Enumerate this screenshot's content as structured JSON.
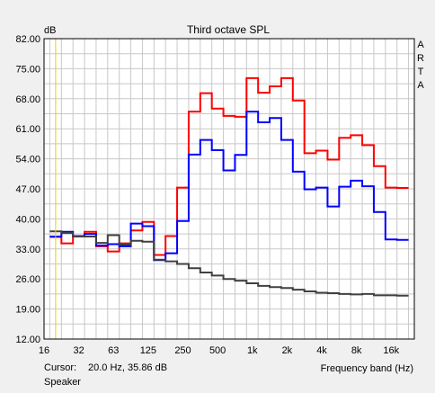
{
  "chart_data": {
    "type": "line",
    "title": "Third octave SPL",
    "ylabel": "dB",
    "xlabel": "Frequency band (Hz)",
    "side_label": [
      "A",
      "R",
      "T",
      "A"
    ],
    "ylim": [
      12.0,
      82.0
    ],
    "y_ticks": [
      "82.00",
      "75.00",
      "68.00",
      "61.00",
      "54.00",
      "47.00",
      "40.00",
      "33.00",
      "26.00",
      "19.00",
      "12.00"
    ],
    "x_tick_labels": [
      "16",
      "32",
      "63",
      "125",
      "250",
      "500",
      "1k",
      "2k",
      "4k",
      "8k",
      "16k"
    ],
    "x_bands": [
      20,
      25,
      31.5,
      40,
      50,
      63,
      80,
      100,
      125,
      160,
      200,
      250,
      315,
      400,
      500,
      630,
      800,
      1000,
      1250,
      1600,
      2000,
      2500,
      3150,
      4000,
      5000,
      6300,
      8000,
      10000,
      12500,
      16000,
      20000
    ],
    "grid": true,
    "cursor_x": 20,
    "series": [
      {
        "color": "#ff0000",
        "values": [
          35.8,
          34.3,
          36.0,
          37.0,
          33.6,
          32.4,
          34.3,
          37.3,
          39.3,
          31.6,
          36.0,
          47.3,
          65.0,
          69.3,
          65.7,
          64.0,
          63.8,
          72.8,
          69.4,
          70.9,
          72.8,
          67.6,
          55.3,
          55.9,
          53.8,
          58.9,
          59.5,
          57.2,
          52.3,
          47.3,
          47.2
        ]
      },
      {
        "color": "#0000ff",
        "values": [
          35.9,
          37.0,
          36.0,
          36.5,
          33.8,
          34.1,
          33.6,
          38.9,
          38.3,
          30.4,
          32.0,
          39.5,
          55.0,
          58.4,
          56.0,
          51.3,
          54.9,
          65.0,
          62.5,
          63.5,
          58.4,
          51.0,
          46.9,
          47.3,
          42.9,
          47.5,
          48.9,
          47.6,
          41.6,
          35.2,
          35.1
        ]
      },
      {
        "color": "#404040",
        "values": [
          37.1,
          36.7,
          35.9,
          35.9,
          34.4,
          36.2,
          34.0,
          34.9,
          34.7,
          30.5,
          30.1,
          29.5,
          28.5,
          27.5,
          26.8,
          26.0,
          25.6,
          25.0,
          24.4,
          24.1,
          23.9,
          23.5,
          23.1,
          22.8,
          22.7,
          22.5,
          22.4,
          22.5,
          22.2,
          22.2,
          22.1
        ]
      }
    ]
  },
  "status": {
    "cursor_label": "Cursor:",
    "cursor_value": "20.0 Hz, 35.86 dB",
    "source": "Speaker"
  }
}
